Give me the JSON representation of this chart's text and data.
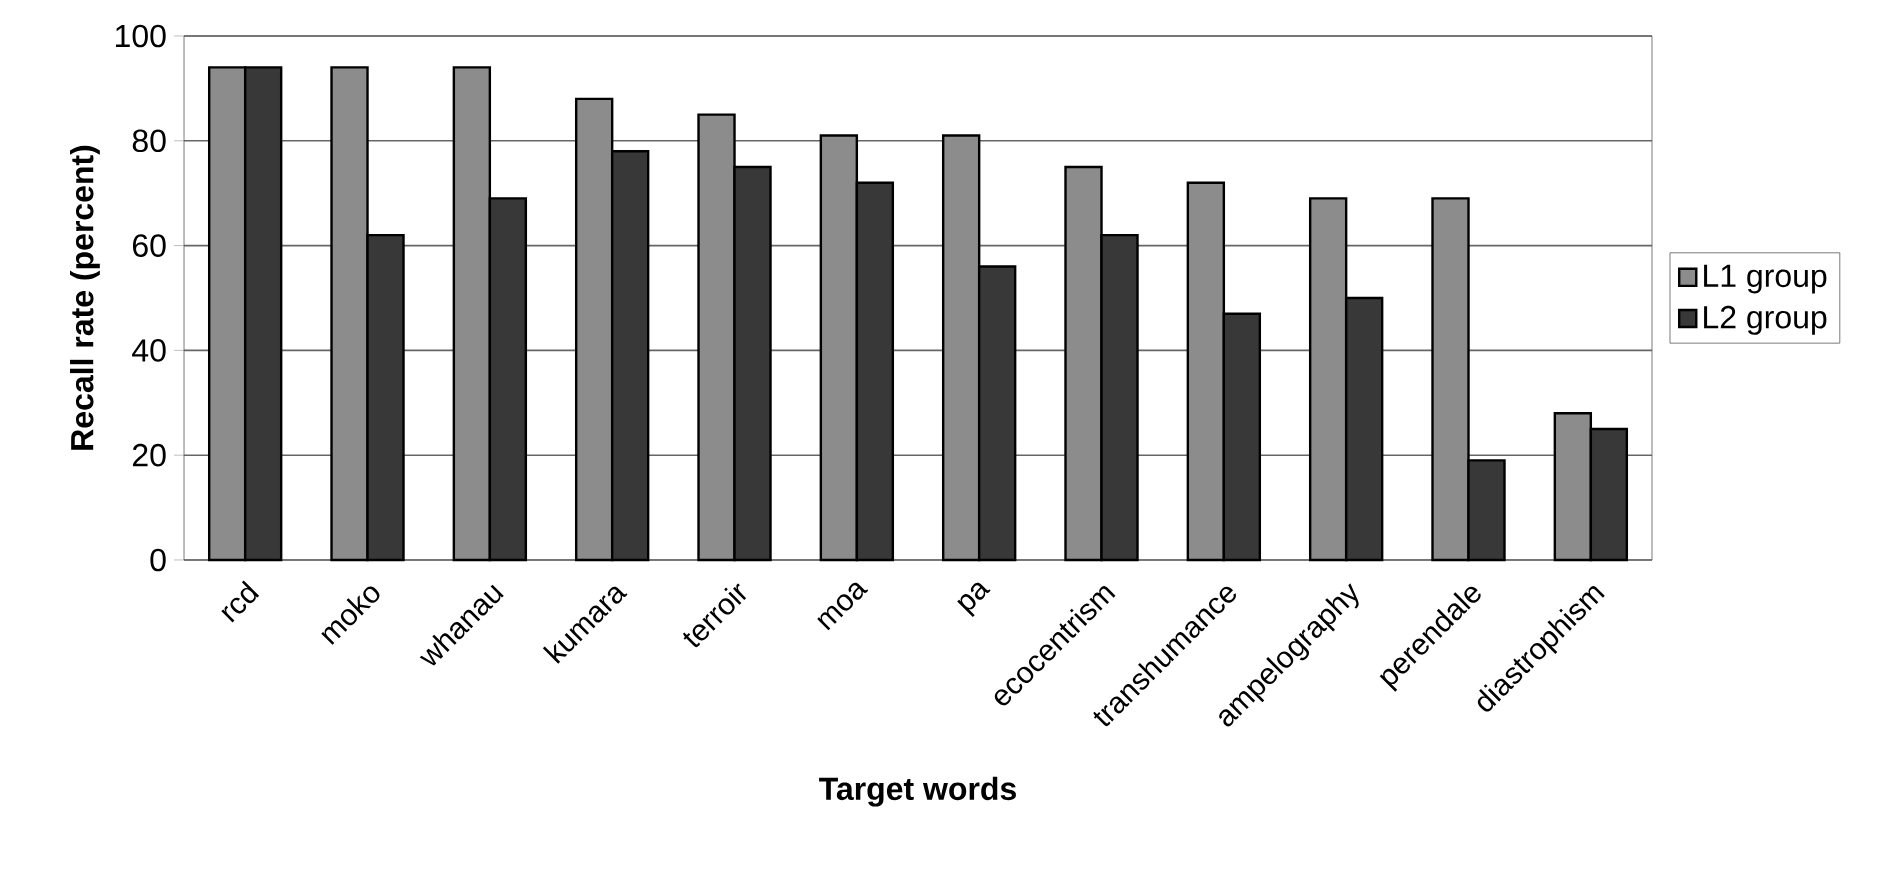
{
  "chart_data": {
    "type": "bar",
    "xlabel": "Target words",
    "ylabel": "Recall rate (percent)",
    "categories": [
      "rcd",
      "moko",
      "whanau",
      "kumara",
      "terroir",
      "moa",
      "pa",
      "ecocentrism",
      "transhumance",
      "ampelography",
      "perendale",
      "diastrophism"
    ],
    "series": [
      {
        "name": "L1 group",
        "color": "#8c8c8c",
        "values": [
          94,
          94,
          94,
          88,
          85,
          81,
          81,
          75,
          72,
          69,
          69,
          28
        ]
      },
      {
        "name": "L2 group",
        "color": "#383838",
        "values": [
          94,
          62,
          69,
          78,
          75,
          72,
          56,
          62,
          47,
          50,
          19,
          25
        ]
      }
    ],
    "ylim": [
      0,
      100
    ],
    "yticks": [
      0,
      20,
      40,
      60,
      80,
      100
    ],
    "grid": "y",
    "legend": "right"
  }
}
